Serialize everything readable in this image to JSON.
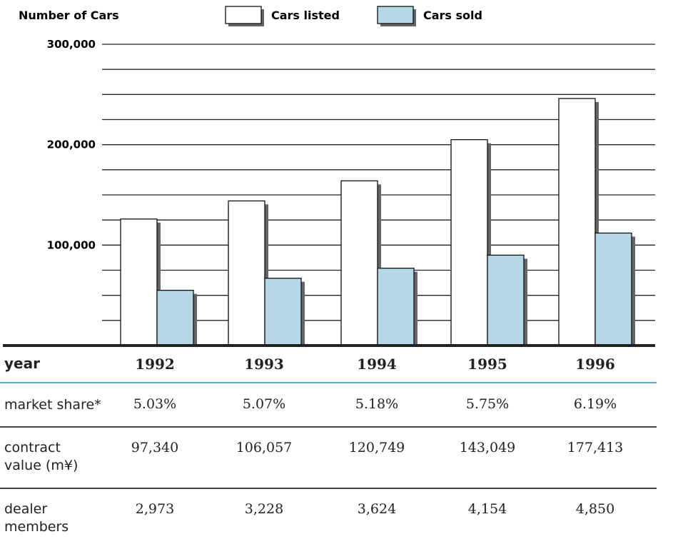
{
  "chart_data": {
    "type": "bar",
    "ylabel": "Number of Cars",
    "ylim": [
      0,
      300000
    ],
    "yticks": [
      100000,
      200000,
      300000
    ],
    "ytick_labels": [
      "100,000",
      "200,000",
      "300,000"
    ],
    "grid": true,
    "legend_position": "top",
    "categories": [
      "1992",
      "1993",
      "1994",
      "1995",
      "1996"
    ],
    "series": [
      {
        "name": "Cars listed",
        "color": "#ffffff",
        "values": [
          126000,
          144000,
          164000,
          205000,
          246000
        ]
      },
      {
        "name": "Cars sold",
        "color": "#b6d7e6",
        "values": [
          55000,
          67000,
          77000,
          90000,
          112000
        ]
      }
    ]
  },
  "table": {
    "rows": [
      {
        "label": "year",
        "values": [
          "1992",
          "1993",
          "1994",
          "1995",
          "1996"
        ]
      },
      {
        "label": "market share*",
        "values": [
          "5.03%",
          "5.07%",
          "5.18%",
          "5.75%",
          "6.19%"
        ]
      },
      {
        "label": "contract value (m¥)",
        "label_lines": [
          "contract",
          "value (m¥)"
        ],
        "values": [
          "97,340",
          "106,057",
          "120,749",
          "143,049",
          "177,413"
        ]
      },
      {
        "label": "dealer members",
        "label_lines": [
          "dealer",
          "members"
        ],
        "values": [
          "2,973",
          "3,228",
          "3,624",
          "4,154",
          "4,850"
        ]
      }
    ]
  },
  "colors": {
    "accent_rule": "#5aaed0",
    "rule": "#444444",
    "axis": "#222222",
    "shadow": "#666666"
  }
}
